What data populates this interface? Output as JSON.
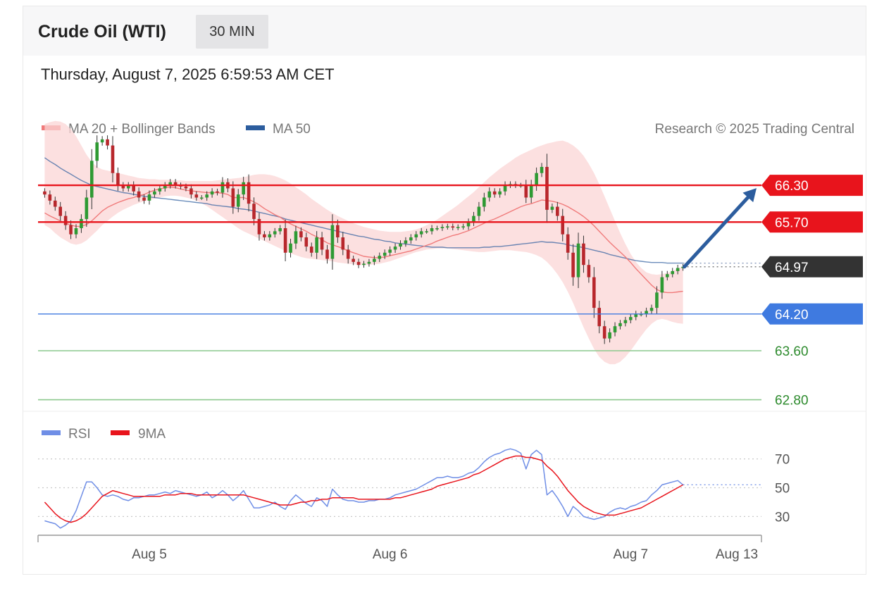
{
  "header": {
    "title": "Crude Oil (WTI)",
    "interval": "30 MIN",
    "datetime": "Thursday, August 7, 2025 6:59:53 AM CET"
  },
  "colors": {
    "ma20": "#f07a7a",
    "ma50": "#2c5d9e",
    "band": "#fbd5d5",
    "candle_up": "#2e9a33",
    "candle_down": "#b8272c",
    "resistance": "#e8141c",
    "support_blue": "#3f7ae0",
    "support_green": "#8cc98e",
    "current": "#333333",
    "rsi": "#6f8ee6",
    "rsi_ma": "#e8141c",
    "arrow": "#2c5d9e"
  },
  "chart_data": [
    {
      "type": "candlestick",
      "legend": [
        {
          "name": "MA 20 + Bollinger Bands",
          "color": "#f07a7a"
        },
        {
          "name": "MA 50",
          "color": "#2c5d9e"
        }
      ],
      "credit": "Research © 2025 Trading Central",
      "x_ticks": [
        {
          "label": "Aug 5",
          "index": 20
        },
        {
          "label": "Aug 6",
          "index": 66
        },
        {
          "label": "Aug 7",
          "index": 112
        },
        {
          "label": "Aug 13",
          "index": 137
        }
      ],
      "x_domain": [
        -1,
        137
      ],
      "ylim": [
        62.6,
        67.6
      ],
      "levels": [
        {
          "value": 66.3,
          "label": "66.30",
          "kind": "resistance"
        },
        {
          "value": 65.7,
          "label": "65.70",
          "kind": "resistance"
        },
        {
          "value": 64.97,
          "label": "64.97",
          "kind": "current"
        },
        {
          "value": 64.2,
          "label": "64.20",
          "kind": "support_blue"
        },
        {
          "value": 63.6,
          "label": "63.60",
          "kind": "support_green"
        },
        {
          "value": 62.8,
          "label": "62.80",
          "kind": "support_green"
        }
      ],
      "close": [
        66.15,
        66.05,
        65.95,
        65.8,
        65.65,
        65.5,
        65.6,
        65.75,
        66.1,
        66.7,
        67.0,
        67.05,
        66.95,
        66.5,
        66.3,
        66.25,
        66.3,
        66.2,
        66.1,
        66.05,
        66.15,
        66.2,
        66.25,
        66.3,
        66.35,
        66.3,
        66.28,
        66.25,
        66.15,
        66.1,
        66.1,
        66.15,
        66.2,
        66.18,
        66.35,
        66.25,
        65.95,
        66.15,
        66.35,
        66.0,
        65.75,
        65.5,
        65.45,
        65.5,
        65.55,
        65.6,
        65.2,
        65.35,
        65.55,
        65.45,
        65.3,
        65.2,
        65.45,
        65.25,
        65.1,
        65.65,
        65.45,
        65.25,
        65.1,
        65.05,
        65.0,
        65.02,
        65.05,
        65.1,
        65.15,
        65.2,
        65.25,
        65.3,
        65.35,
        65.4,
        65.45,
        65.5,
        65.55,
        65.55,
        65.6,
        65.6,
        65.62,
        65.63,
        65.61,
        65.62,
        65.63,
        65.7,
        65.8,
        65.95,
        66.1,
        66.2,
        66.15,
        66.2,
        66.3,
        66.32,
        66.3,
        66.3,
        66.1,
        66.3,
        66.5,
        66.6,
        65.9,
        65.95,
        65.8,
        65.5,
        65.2,
        64.8,
        65.35,
        65.0,
        64.8,
        64.3,
        64.0,
        63.8,
        63.9,
        64.0,
        64.05,
        64.1,
        64.15,
        64.2,
        64.2,
        64.25,
        64.3,
        64.55,
        64.8,
        64.85,
        64.9,
        64.95,
        64.97
      ],
      "ma20": [
        65.85,
        65.8,
        65.76,
        65.72,
        65.68,
        65.65,
        65.63,
        65.63,
        65.66,
        65.72,
        65.8,
        65.88,
        65.94,
        65.98,
        66.02,
        66.05,
        66.08,
        66.1,
        66.13,
        66.15,
        66.19,
        66.22,
        66.24,
        66.26,
        66.27,
        66.26,
        66.24,
        66.22,
        66.21,
        66.2,
        66.19,
        66.18,
        66.18,
        66.18,
        66.17,
        66.15,
        66.1,
        66.1,
        66.1,
        66.07,
        66.03,
        65.98,
        65.92,
        65.87,
        65.82,
        65.78,
        65.72,
        65.67,
        65.63,
        65.59,
        65.55,
        65.5,
        65.46,
        65.41,
        65.36,
        65.33,
        65.3,
        65.27,
        65.23,
        65.2,
        65.17,
        65.14,
        65.13,
        65.12,
        65.12,
        65.13,
        65.15,
        65.17,
        65.19,
        65.21,
        65.23,
        65.26,
        65.29,
        65.32,
        65.35,
        65.39,
        65.42,
        65.45,
        65.48,
        65.5,
        65.53,
        65.56,
        65.6,
        65.64,
        65.68,
        65.72,
        65.75,
        65.79,
        65.83,
        65.87,
        65.91,
        65.95,
        65.98,
        66.0,
        66.03,
        66.06,
        66.05,
        66.04,
        66.02,
        65.99,
        65.95,
        65.9,
        65.85,
        65.79,
        65.72,
        65.64,
        65.55,
        65.46,
        65.37,
        65.29,
        65.21,
        65.13,
        65.04,
        64.94,
        64.85,
        64.76,
        64.67,
        64.6,
        64.56,
        64.55,
        64.55,
        64.56,
        64.57
      ],
      "ma50": [
        66.75,
        66.69,
        66.64,
        66.58,
        66.53,
        66.48,
        66.43,
        66.38,
        66.34,
        66.3,
        66.28,
        66.26,
        66.24,
        66.22,
        66.2,
        66.18,
        66.17,
        66.15,
        66.14,
        66.12,
        66.11,
        66.1,
        66.09,
        66.08,
        66.07,
        66.06,
        66.05,
        66.04,
        66.03,
        66.02,
        66.01,
        66.0,
        65.98,
        65.97,
        65.96,
        65.95,
        65.94,
        65.92,
        65.91,
        65.9,
        65.88,
        65.86,
        65.84,
        65.82,
        65.8,
        65.78,
        65.75,
        65.73,
        65.71,
        65.69,
        65.67,
        65.65,
        65.63,
        65.61,
        65.59,
        65.57,
        65.55,
        65.53,
        65.51,
        65.49,
        65.47,
        65.46,
        65.44,
        65.42,
        65.41,
        65.39,
        65.38,
        65.36,
        65.35,
        65.34,
        65.33,
        65.32,
        65.31,
        65.3,
        65.29,
        65.29,
        65.29,
        65.28,
        65.28,
        65.28,
        65.28,
        65.28,
        65.28,
        65.28,
        65.29,
        65.29,
        65.3,
        65.3,
        65.31,
        65.32,
        65.33,
        65.34,
        65.35,
        65.36,
        65.37,
        65.38,
        65.37,
        65.37,
        65.36,
        65.35,
        65.33,
        65.31,
        65.3,
        65.28,
        65.26,
        65.24,
        65.22,
        65.2,
        65.17,
        65.15,
        65.13,
        65.11,
        65.09,
        65.07,
        65.06,
        65.05,
        65.04,
        65.04,
        65.04,
        65.03,
        65.03,
        65.03,
        65.03
      ],
      "band_upper": [
        67.3,
        67.33,
        67.35,
        67.34,
        67.3,
        67.22,
        67.1,
        66.95,
        66.8,
        66.68,
        66.6,
        66.56,
        66.54,
        66.52,
        66.5,
        66.48,
        66.46,
        66.44,
        66.42,
        66.41,
        66.4,
        66.4,
        66.39,
        66.39,
        66.39,
        66.38,
        66.38,
        66.37,
        66.37,
        66.37,
        66.37,
        66.37,
        66.37,
        66.38,
        66.39,
        66.4,
        66.41,
        66.42,
        66.43,
        66.45,
        66.47,
        66.48,
        66.48,
        66.47,
        66.45,
        66.42,
        66.38,
        66.33,
        66.27,
        66.21,
        66.15,
        66.08,
        66.02,
        65.96,
        65.9,
        65.85,
        65.8,
        65.76,
        65.72,
        65.68,
        65.65,
        65.62,
        65.6,
        65.58,
        65.56,
        65.55,
        65.54,
        65.54,
        65.54,
        65.55,
        65.56,
        65.58,
        65.61,
        65.65,
        65.69,
        65.74,
        65.8,
        65.86,
        65.92,
        65.98,
        66.05,
        66.12,
        66.19,
        66.27,
        66.35,
        66.43,
        66.5,
        66.57,
        66.63,
        66.69,
        66.75,
        66.8,
        66.84,
        66.88,
        66.92,
        66.95,
        66.98,
        67.0,
        67.02,
        67.03,
        67.0,
        66.95,
        66.88,
        66.78,
        66.65,
        66.5,
        66.32,
        66.12,
        65.92,
        65.72,
        65.52,
        65.34,
        65.18,
        65.05,
        64.95,
        64.88,
        64.85,
        64.84,
        64.85,
        64.87,
        64.9,
        64.94,
        64.98
      ],
      "band_lower": [
        65.65,
        65.6,
        65.52,
        65.45,
        65.4,
        65.35,
        65.33,
        65.35,
        65.4,
        65.48,
        65.56,
        65.65,
        65.72,
        65.79,
        65.85,
        65.9,
        65.94,
        65.98,
        66.01,
        66.04,
        66.06,
        66.08,
        66.1,
        66.12,
        66.13,
        66.13,
        66.12,
        66.1,
        66.08,
        66.05,
        66.01,
        65.96,
        65.9,
        65.84,
        65.78,
        65.72,
        65.66,
        65.6,
        65.55,
        65.51,
        65.47,
        65.43,
        65.39,
        65.35,
        65.31,
        65.27,
        65.23,
        65.19,
        65.16,
        65.13,
        65.11,
        65.1,
        65.09,
        65.08,
        65.07,
        65.06,
        65.04,
        65.03,
        65.02,
        65.01,
        65.0,
        65.0,
        65.0,
        65.01,
        65.02,
        65.04,
        65.06,
        65.09,
        65.12,
        65.15,
        65.18,
        65.21,
        65.23,
        65.25,
        65.26,
        65.27,
        65.27,
        65.27,
        65.26,
        65.25,
        65.24,
        65.23,
        65.22,
        65.21,
        65.21,
        65.22,
        65.23,
        65.24,
        65.24,
        65.24,
        65.23,
        65.22,
        65.21,
        65.19,
        65.16,
        65.12,
        65.05,
        64.96,
        64.85,
        64.72,
        64.56,
        64.38,
        64.18,
        63.98,
        63.8,
        63.63,
        63.5,
        63.42,
        63.38,
        63.38,
        63.42,
        63.5,
        63.6,
        63.72,
        63.84,
        63.95,
        64.04,
        64.1,
        64.12,
        64.1,
        64.07,
        64.05,
        64.04
      ]
    },
    {
      "type": "line",
      "legend": [
        {
          "name": "RSI",
          "color": "#6f8ee6"
        },
        {
          "name": "9MA",
          "color": "#e8141c"
        }
      ],
      "y_ticks": [
        70,
        50,
        30
      ],
      "ylim": [
        17,
        83
      ],
      "rsi": [
        27,
        26,
        25,
        22,
        24,
        27,
        34,
        44,
        54,
        54,
        50,
        45,
        44,
        45,
        44,
        42,
        41,
        43,
        43,
        44,
        45,
        45,
        46,
        47,
        46,
        48,
        47,
        46,
        45,
        44,
        45,
        47,
        43,
        45,
        48,
        45,
        41,
        44,
        48,
        42,
        36,
        36,
        37,
        38,
        40,
        37,
        35,
        41,
        45,
        42,
        39,
        37,
        43,
        41,
        37,
        49,
        45,
        42,
        41,
        41,
        40,
        40,
        41,
        41,
        42,
        42,
        43,
        45,
        46,
        47,
        48,
        49,
        51,
        53,
        55,
        57,
        57,
        58,
        57,
        57,
        58,
        60,
        61,
        64,
        68,
        71,
        73,
        74,
        76,
        77,
        76,
        74,
        63,
        73,
        76,
        73,
        45,
        48,
        43,
        37,
        30,
        37,
        34,
        30,
        29,
        28,
        29,
        30,
        33,
        35,
        36,
        35,
        37,
        38,
        40,
        41,
        45,
        48,
        52,
        53,
        54,
        55,
        52
      ],
      "rsi_ma": [
        40,
        36,
        32,
        29,
        27,
        26,
        27,
        29,
        32,
        36,
        40,
        44,
        46,
        48,
        47,
        46,
        45,
        44,
        44,
        44,
        44,
        44,
        44,
        45,
        45,
        45,
        46,
        46,
        46,
        45,
        45,
        45,
        45,
        45,
        45,
        45,
        45,
        45,
        45,
        44,
        43,
        42,
        41,
        40,
        39,
        38,
        38,
        38,
        39,
        40,
        40,
        41,
        41,
        42,
        42,
        43,
        43,
        43,
        43,
        43,
        42,
        42,
        42,
        42,
        42,
        42,
        42,
        43,
        43,
        44,
        45,
        46,
        47,
        48,
        49,
        51,
        52,
        53,
        54,
        55,
        56,
        57,
        59,
        60,
        62,
        64,
        66,
        68,
        70,
        71,
        72,
        72,
        71,
        71,
        70,
        69,
        65,
        62,
        58,
        53,
        48,
        44,
        40,
        37,
        35,
        33,
        32,
        31,
        31,
        31,
        32,
        33,
        34,
        35,
        36,
        38,
        40,
        42,
        44,
        46,
        48,
        50,
        52
      ]
    }
  ]
}
